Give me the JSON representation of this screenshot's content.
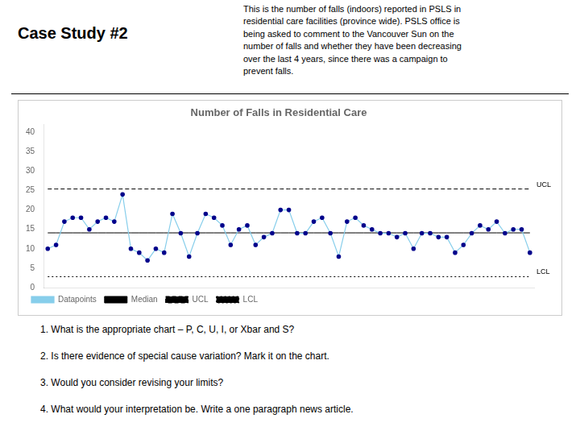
{
  "header_title": "Case Study #2",
  "header_text": "This is the number of falls (indoors) reported in PSLS in\nresidential care facilities (province wide). PSLS office is\nbeing asked to comment to the Vancouver Sun on the\nnumber of falls and whether they have been decreasing\nover the last 4 years, since there was a campaign to\nprevent falls.",
  "questions": [
    "1.   What is the appropriate chart – P, C, U, I, or Xbar and S?",
    "2.   Is there evidence of special cause variation? Mark it on the chart.",
    "3.   Would you consider revising your limits?",
    "4.   What would your interpretation be. Write a one paragraph news article."
  ],
  "chart_data": {
    "type": "line",
    "title": "Number of Falls in Residential Care",
    "categories": [
      null,
      null,
      null,
      null,
      null,
      null,
      null,
      null,
      null,
      null,
      null,
      null,
      null,
      null,
      null,
      null,
      null,
      null,
      null,
      null,
      null,
      null,
      null,
      null,
      null,
      null,
      null,
      null,
      null,
      null,
      null,
      null,
      null,
      null,
      null,
      null,
      null,
      null,
      null,
      null,
      null,
      null,
      null,
      null,
      null,
      null,
      null,
      null,
      null,
      null,
      null,
      null,
      null,
      null,
      null,
      null,
      null,
      null,
      null
    ],
    "series": [
      {
        "name": "Datapoints",
        "color": "#87CEEB",
        "marker": "circle",
        "colors": [
          "#00008B",
          "#00008B",
          "#00008B",
          "#00008B",
          "#00008B",
          "#00008B",
          "#00008B",
          "#00008B",
          "#00008B",
          "#00008B",
          "#00008B",
          "#00008B",
          "#00008B",
          "#00008B",
          "#00008B",
          "#00008B",
          "#00008B",
          "#00008B",
          "#00008B",
          "#00008B",
          "#00008B",
          "#00008B",
          "#00008B",
          "#00008B",
          "#00008B",
          "#00008B",
          "#00008B",
          "#00008B",
          "#00008B",
          "#00008B",
          "#00008B",
          "#00008B",
          "#00008B",
          "#00008B",
          "#00008B",
          "#00008B",
          "#00008B",
          "#00008B",
          "#00008B",
          "#00008B",
          "#00008B",
          "#00008B",
          "#00008B",
          "#00008B",
          "#00008B",
          "#00008B",
          "#00008B",
          "#00008B",
          "#00008B",
          "#00008B",
          "#00008B",
          "#00008B",
          "#00008B",
          "#00008B",
          "#00008B",
          "#00008B",
          "#00008B",
          "#00008B",
          "#00008B"
        ],
        "values": [
          10,
          11,
          17,
          18,
          18,
          15,
          17,
          18,
          17,
          24,
          10,
          9,
          7,
          10,
          9,
          19,
          14,
          8,
          14,
          19,
          18,
          16,
          11,
          15,
          16,
          11,
          13,
          14,
          20,
          20,
          14,
          14,
          17,
          18,
          14,
          8,
          17,
          18,
          16,
          15,
          14,
          14,
          13,
          14,
          10,
          14,
          14,
          13,
          13,
          9,
          11,
          14,
          16,
          15,
          17,
          14,
          15,
          15,
          9
        ]
      },
      {
        "name": "Median",
        "color": "#000000",
        "line_style": "solid",
        "values": [
          14.1,
          14.1,
          14.1,
          14.1,
          14.1,
          14.1,
          14.1,
          14.1,
          14.1,
          14.1,
          14.1,
          14.1,
          14.1,
          14.1,
          14.1,
          14.1,
          14.1,
          14.1,
          14.1,
          14.1,
          14.1,
          14.1,
          14.1,
          14.1,
          14.1,
          14.1,
          14.1,
          14.1,
          14.1,
          14.1,
          14.1,
          14.1,
          14.1,
          14.1,
          14.1,
          14.1,
          14.1,
          14.1,
          14.1,
          14.1,
          14.1,
          14.1,
          14.1,
          14.1,
          14.1,
          14.1,
          14.1,
          14.1,
          14.1,
          14.1,
          14.1,
          14.1,
          14.1,
          14.1,
          14.1,
          14.1,
          14.1,
          14.1,
          14.1
        ]
      },
      {
        "name": "UCL",
        "color": "#000000",
        "line_style": "dashed",
        "values": [
          25.4,
          25.4,
          25.4,
          25.4,
          25.4,
          25.4,
          25.4,
          25.4,
          25.4,
          25.4,
          25.4,
          25.4,
          25.4,
          25.4,
          25.4,
          25.4,
          25.4,
          25.4,
          25.4,
          25.4,
          25.4,
          25.4,
          25.4,
          25.4,
          25.4,
          25.4,
          25.4,
          25.4,
          25.4,
          25.4,
          25.4,
          25.4,
          25.4,
          25.4,
          25.4,
          25.4,
          25.4,
          25.4,
          25.4,
          25.4,
          25.4,
          25.4,
          25.4,
          25.4,
          25.4,
          25.4,
          25.4,
          25.4,
          25.4,
          25.4,
          25.4,
          25.4,
          25.4,
          25.4,
          25.4,
          25.4,
          25.4,
          25.4,
          25.4
        ]
      },
      {
        "name": "LCL",
        "color": "#000000",
        "line_style": "dotted",
        "values": [
          2.8,
          2.8,
          2.8,
          2.8,
          2.8,
          2.8,
          2.8,
          2.8,
          2.8,
          2.8,
          2.8,
          2.8,
          2.8,
          2.8,
          2.8,
          2.8,
          2.8,
          2.8,
          2.8,
          2.8,
          2.8,
          2.8,
          2.8,
          2.8,
          2.8,
          2.8,
          2.8,
          2.8,
          2.8,
          2.8,
          2.8,
          2.8,
          2.8,
          2.8,
          2.8,
          2.8,
          2.8,
          2.8,
          2.8,
          2.8,
          2.8,
          2.8,
          2.8,
          2.8,
          2.8,
          2.8,
          2.8,
          2.8,
          2.8,
          2.8,
          2.8,
          2.8,
          2.8,
          2.8,
          2.8,
          2.8,
          2.8,
          2.8,
          2.8
        ]
      }
    ],
    "annotations": [
      {
        "text": "UCL",
        "y": 25.4
      },
      {
        "text": "LCL",
        "y": 2.8
      }
    ],
    "ylim": [
      0,
      42
    ],
    "yticks": [
      0,
      5,
      10,
      15,
      20,
      25,
      30,
      35,
      40
    ],
    "grid": false,
    "legend": "lower left",
    "tick_labels": "y"
  }
}
